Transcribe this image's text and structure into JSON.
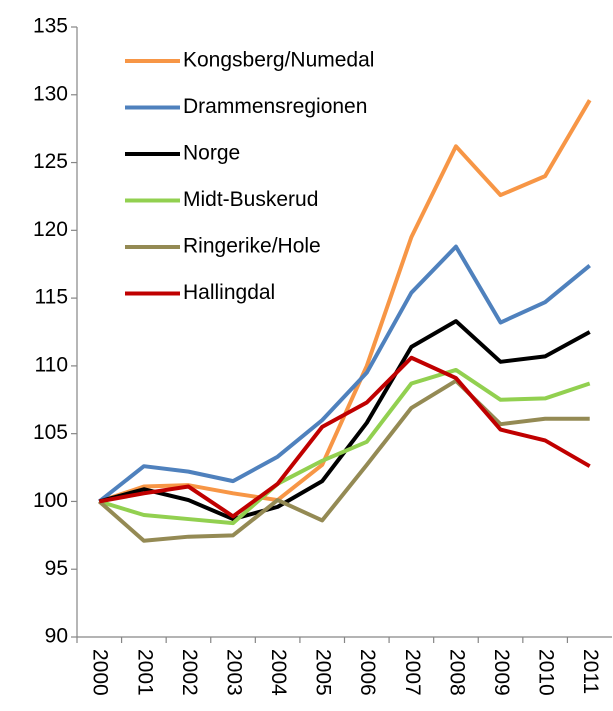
{
  "chart_data": {
    "type": "line",
    "categories": [
      "2000",
      "2001",
      "2002",
      "2003",
      "2004",
      "2005",
      "2006",
      "2007",
      "2008",
      "2009",
      "2010",
      "2011"
    ],
    "series": [
      {
        "name": "Kongsberg/Numedal",
        "color": "#f79646",
        "values": [
          100,
          101.1,
          101.2,
          100.6,
          100.1,
          102.7,
          110,
          119.5,
          126.2,
          122.6,
          124,
          129.6
        ]
      },
      {
        "name": "Drammensregionen",
        "color": "#4f81bd",
        "values": [
          100,
          102.6,
          102.2,
          101.5,
          103.3,
          106,
          109.5,
          115.4,
          118.8,
          113.2,
          114.7,
          117.4
        ]
      },
      {
        "name": "Norge",
        "color": "#000000",
        "values": [
          100,
          100.9,
          100.1,
          98.7,
          99.6,
          101.5,
          105.8,
          111.4,
          113.3,
          110.3,
          110.7,
          112.5
        ]
      },
      {
        "name": "Midt-Buskerud",
        "color": "#92d050",
        "values": [
          100,
          99,
          98.7,
          98.4,
          101.3,
          103,
          104.4,
          108.7,
          109.7,
          107.5,
          107.6,
          108.7
        ]
      },
      {
        "name": "Ringerike/Hole",
        "color": "#948a54",
        "values": [
          100,
          97.1,
          97.4,
          97.5,
          100.1,
          98.6,
          102.7,
          106.9,
          108.9,
          105.7,
          106.1,
          106.1
        ]
      },
      {
        "name": "Hallingdal",
        "color": "#c00000",
        "values": [
          100,
          100.6,
          101.1,
          98.9,
          101.3,
          105.5,
          107.3,
          110.6,
          109.1,
          105.3,
          104.5,
          102.6
        ]
      }
    ],
    "ylim": [
      90,
      135
    ],
    "yticks": [
      90,
      95,
      100,
      105,
      110,
      115,
      120,
      125,
      130,
      135
    ],
    "legend": "upper left"
  }
}
